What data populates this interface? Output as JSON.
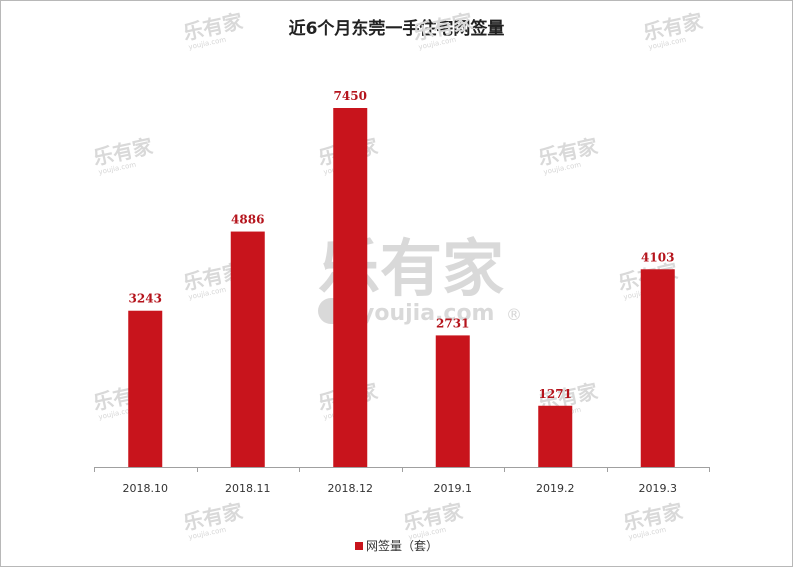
{
  "chart_data": {
    "type": "bar",
    "title": "近6个月东莞一手住宅网签量",
    "categories": [
      "2018.10",
      "2018.11",
      "2018.12",
      "2019.1",
      "2019.2",
      "2019.3"
    ],
    "series": [
      {
        "name": "网签量（套）",
        "values": [
          3243,
          4886,
          7450,
          2731,
          1271,
          4103
        ]
      }
    ],
    "xlabel": "",
    "ylabel": "",
    "ylim": [
      0,
      7450
    ],
    "grid": false,
    "legend": "bottom",
    "bar_color": "#c8141c"
  },
  "watermark": {
    "brand": "乐有家",
    "domain": "youjia.com",
    "registered": "®"
  }
}
